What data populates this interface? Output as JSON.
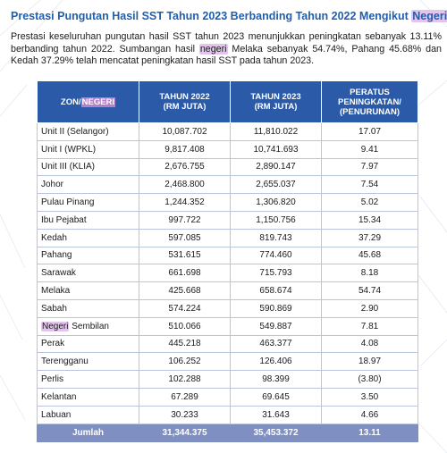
{
  "title": {
    "prefix": "Prestasi Pungutan Hasil SST Tahun 2023 Berbanding Tahun 2022 Mengikut",
    "highlight": "Negeri"
  },
  "paragraph": {
    "part1": "Prestasi keseluruhan pungutan hasil SST tahun 2023 menunjukkan peningkatan sebanyak 13.11% berbanding tahun 2022. Sumbangan hasil",
    "highlight": "negeri",
    "part2": "Melaka sebanyak 54.74%, Pahang 45.68% dan Kedah 37.29% telah mencatat peningkatan hasil SST pada tahun 2023."
  },
  "table": {
    "headers": {
      "zone_prefix": "ZON/",
      "zone_highlight": "NEGERI",
      "y2022_line1": "TAHUN 2022",
      "y2022_line2": "(RM JUTA)",
      "y2023_line1": "TAHUN 2023",
      "y2023_line2": "(RM JUTA)",
      "pct_line1": "PERATUS",
      "pct_line2": "PENINGKATAN/",
      "pct_line3": "(PENURUNAN)"
    },
    "rows": [
      {
        "name": "Unit II (Selangor)",
        "y2022": "10,087.702",
        "y2023": "11,810.022",
        "pct": "17.07"
      },
      {
        "name": "Unit I (WPKL)",
        "y2022": "9,817.408",
        "y2023": "10,741.693",
        "pct": "9.41"
      },
      {
        "name": "Unit III (KLIA)",
        "y2022": "2,676.755",
        "y2023": "2,890.147",
        "pct": "7.97"
      },
      {
        "name": "Johor",
        "y2022": "2,468.800",
        "y2023": "2,655.037",
        "pct": "7.54"
      },
      {
        "name": "Pulau Pinang",
        "y2022": "1,244.352",
        "y2023": "1,306.820",
        "pct": "5.02"
      },
      {
        "name": "Ibu Pejabat",
        "y2022": "997.722",
        "y2023": "1,150.756",
        "pct": "15.34"
      },
      {
        "name": "Kedah",
        "y2022": "597.085",
        "y2023": "819.743",
        "pct": "37.29"
      },
      {
        "name": "Pahang",
        "y2022": "531.615",
        "y2023": "774.460",
        "pct": "45.68"
      },
      {
        "name": "Sarawak",
        "y2022": "661.698",
        "y2023": "715.793",
        "pct": "8.18"
      },
      {
        "name": "Melaka",
        "y2022": "425.668",
        "y2023": "658.674",
        "pct": "54.74"
      },
      {
        "name": "Sabah",
        "y2022": "574.224",
        "y2023": "590.869",
        "pct": "2.90"
      },
      {
        "name_highlight": "Negeri",
        "name_rest": " Sembilan",
        "y2022": "510.066",
        "y2023": "549.887",
        "pct": "7.81"
      },
      {
        "name": "Perak",
        "y2022": "445.218",
        "y2023": "463.377",
        "pct": "4.08"
      },
      {
        "name": "Terengganu",
        "y2022": "106.252",
        "y2023": "126.406",
        "pct": "18.97"
      },
      {
        "name": "Perlis",
        "y2022": "102.288",
        "y2023": "98.399",
        "pct": "(3.80)"
      },
      {
        "name": "Kelantan",
        "y2022": "67.289",
        "y2023": "69.645",
        "pct": "3.50"
      },
      {
        "name": "Labuan",
        "y2022": "30.233",
        "y2023": "31.643",
        "pct": "4.66"
      }
    ],
    "total": {
      "label": "Jumlah",
      "y2022": "31,344.375",
      "y2023": "35,453.372",
      "pct": "13.11"
    }
  },
  "colors": {
    "title": "#1f5fae",
    "header_bg": "#2a5aa8",
    "total_bg": "#7f8fc2",
    "highlight": "#e3c4ec",
    "border": "#b9c5dc"
  }
}
